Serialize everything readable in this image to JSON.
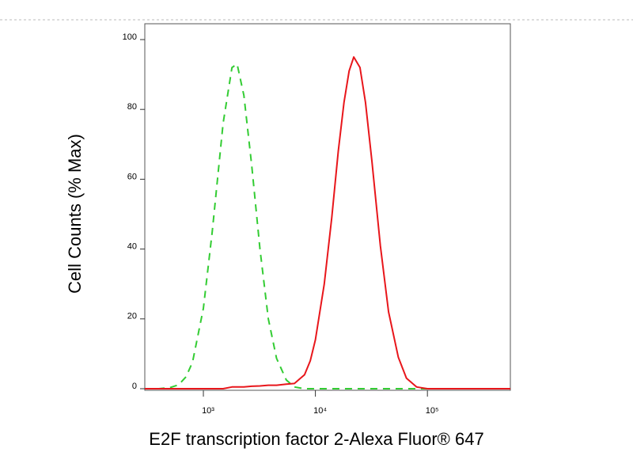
{
  "chart_data": {
    "type": "line",
    "xlabel": "E2F transcription factor 2-Alexa Fluor® 647",
    "ylabel": "Cell Counts (% Max)",
    "xscale": "log",
    "x": [
      300,
      400,
      500,
      600,
      700,
      800,
      1000,
      1200,
      1500,
      1800,
      2000,
      2300,
      2700,
      3200,
      3800,
      4500,
      5500,
      6500,
      8000,
      9000,
      10000,
      12000,
      14000,
      16000,
      18000,
      20000,
      22000,
      25000,
      28000,
      32000,
      38000,
      45000,
      55000,
      65000,
      80000,
      100000,
      200000,
      550000
    ],
    "series": [
      {
        "color": "#33cc33",
        "dash": true,
        "values": [
          0,
          0,
          0.3,
          1.1,
          3.4,
          7.6,
          23,
          45,
          76,
          92,
          93,
          84,
          64,
          40,
          20,
          8.7,
          2.5,
          0.5,
          0,
          0,
          0,
          0,
          0,
          0,
          0,
          0,
          0,
          0,
          0,
          0,
          0,
          0,
          0,
          0,
          0,
          0,
          0,
          0
        ]
      },
      {
        "color": "#e8161b",
        "dash": false,
        "values": [
          0,
          0,
          0,
          0,
          0,
          0,
          0,
          0,
          0,
          0.5,
          0.5,
          0.5,
          0.7,
          0.8,
          1,
          1,
          1.3,
          1.5,
          4,
          8,
          14,
          30,
          49,
          68,
          82,
          91,
          95,
          92,
          82,
          65,
          41,
          22,
          9,
          3,
          0.5,
          0,
          0,
          0
        ]
      }
    ],
    "xlim": [
      300,
      550000
    ],
    "ylim": [
      0,
      100
    ],
    "xticks": [
      {
        "value": 1000,
        "label": "10³"
      },
      {
        "value": 10000,
        "label": "10⁴"
      },
      {
        "value": 100000,
        "label": "10⁵"
      }
    ],
    "yticks": [
      0,
      20,
      40,
      60,
      80,
      100
    ]
  }
}
